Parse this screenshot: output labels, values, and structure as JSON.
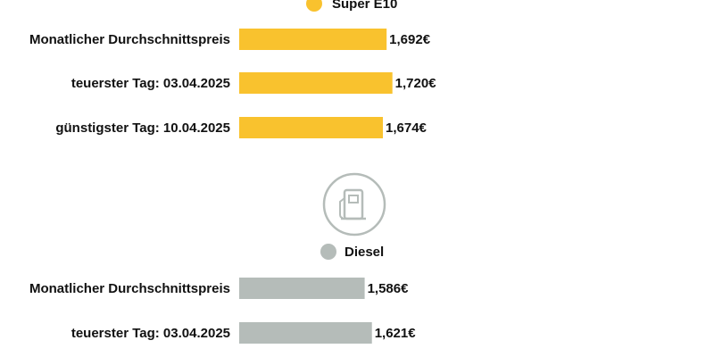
{
  "colors": {
    "super_e10": "#f9c22e",
    "diesel": "#b5bcb9",
    "icon": "#b5bcb9",
    "text": "#111111"
  },
  "icon": "fuel-pump-icon",
  "chart_data": [
    {
      "type": "bar",
      "orientation": "horizontal",
      "legend": "Super E10",
      "series": [
        {
          "name": "Super E10",
          "values": [
            1.692,
            1.72,
            1.674
          ]
        }
      ],
      "categories": [
        "Monatlicher Durchschnittspreis",
        "teuerster Tag: 03.04.2025",
        "günstigster Tag: 10.04.2025"
      ],
      "value_labels": [
        "1,692€",
        "1,720€",
        "1,674€"
      ],
      "grid": false
    },
    {
      "type": "bar",
      "orientation": "horizontal",
      "legend": "Diesel",
      "series": [
        {
          "name": "Diesel",
          "values": [
            1.586,
            1.621
          ]
        }
      ],
      "categories": [
        "Monatlicher Durchschnittspreis",
        "teuerster Tag: 03.04.2025"
      ],
      "value_labels": [
        "1,586€",
        "1,621€"
      ],
      "grid": false
    }
  ]
}
